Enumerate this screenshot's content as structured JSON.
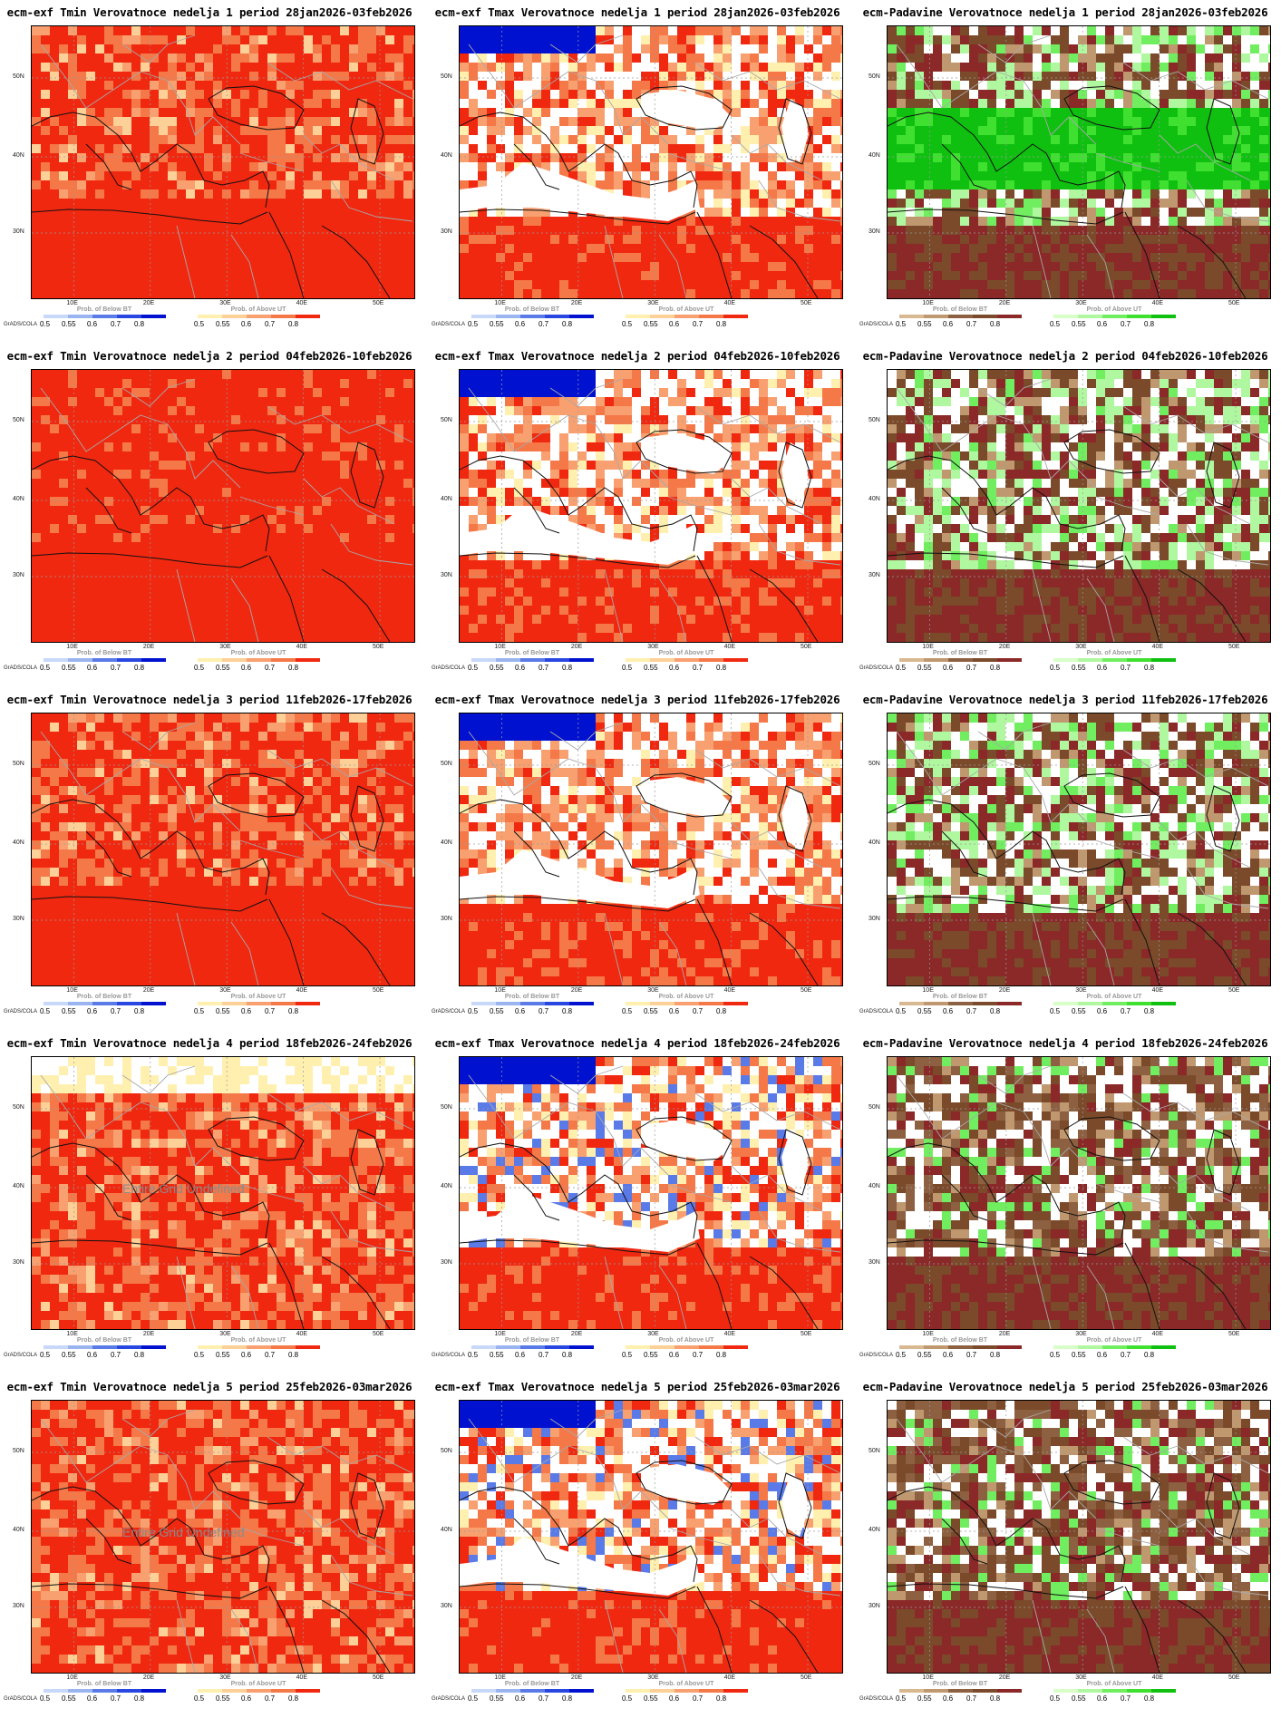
{
  "credit": "GrADS/COLA",
  "y_ticks": [
    "50N",
    "40N",
    "30N"
  ],
  "x_ticks": [
    "10E",
    "20E",
    "30E",
    "40E",
    "50E"
  ],
  "legend_ticks": [
    "0.5",
    "0.55",
    "0.6",
    "0.7",
    "0.8"
  ],
  "legends": {
    "temp_below": {
      "name": "Prob. of Below BT",
      "colors": [
        "#c8d8f8",
        "#9ab4f0",
        "#5a7ae8",
        "#2846e0",
        "#0012d0"
      ]
    },
    "temp_above": {
      "name": "Prob. of Above UT",
      "colors": [
        "#fff0b0",
        "#fdd098",
        "#f8a070",
        "#f57848",
        "#f02810"
      ]
    },
    "prec_below": {
      "name": "Prob. of Below BT",
      "colors": [
        "#d8b890",
        "#c09870",
        "#8c6040",
        "#7a4a2a",
        "#8b2828"
      ]
    },
    "prec_above": {
      "name": "Prob. of Above UT",
      "colors": [
        "#d8ffc8",
        "#b0f8a0",
        "#70ee60",
        "#40e030",
        "#10c010"
      ]
    }
  },
  "panels": [
    {
      "title": "ecm-exf Tmin Verovatnoce nedelja 1 period 28jan2026-03feb2026"
    },
    {
      "title": "ecm-exf Tmax Verovatnoce nedelja 1 period 28jan2026-03feb2026"
    },
    {
      "title": "ecm-Padavine Verovatnoce nedelja 1 period 28jan2026-03feb2026"
    },
    {
      "title": "ecm-exf Tmin Verovatnoce nedelja 2 period 04feb2026-10feb2026"
    },
    {
      "title": "ecm-exf Tmax Verovatnoce nedelja 2 period 04feb2026-10feb2026"
    },
    {
      "title": "ecm-Padavine Verovatnoce nedelja 2 period 04feb2026-10feb2026"
    },
    {
      "title": "ecm-exf Tmin Verovatnoce nedelja 3 period 11feb2026-17feb2026"
    },
    {
      "title": "ecm-exf Tmax Verovatnoce nedelja 3 period 11feb2026-17feb2026"
    },
    {
      "title": "ecm-Padavine Verovatnoce nedelja 3 period 11feb2026-17feb2026"
    },
    {
      "title": "ecm-exf Tmin Verovatnoce nedelja 4 period 18feb2026-24feb2026",
      "annotation": "Entire Grid Undefined"
    },
    {
      "title": "ecm-exf Tmax Verovatnoce nedelja 4 period 18feb2026-24feb2026"
    },
    {
      "title": "ecm-Padavine Verovatnoce nedelja 4 period 18feb2026-24feb2026"
    },
    {
      "title": "ecm-exf Tmin Verovatnoce nedelja 5 period 25feb2026-03mar2026",
      "annotation": "Entire Grid Undefined"
    },
    {
      "title": "ecm-exf Tmax Verovatnoce nedelja 5 period 25feb2026-03mar2026"
    },
    {
      "title": "ecm-Padavine Verovatnoce nedelja 5 period 25feb2026-03mar2026"
    }
  ]
}
